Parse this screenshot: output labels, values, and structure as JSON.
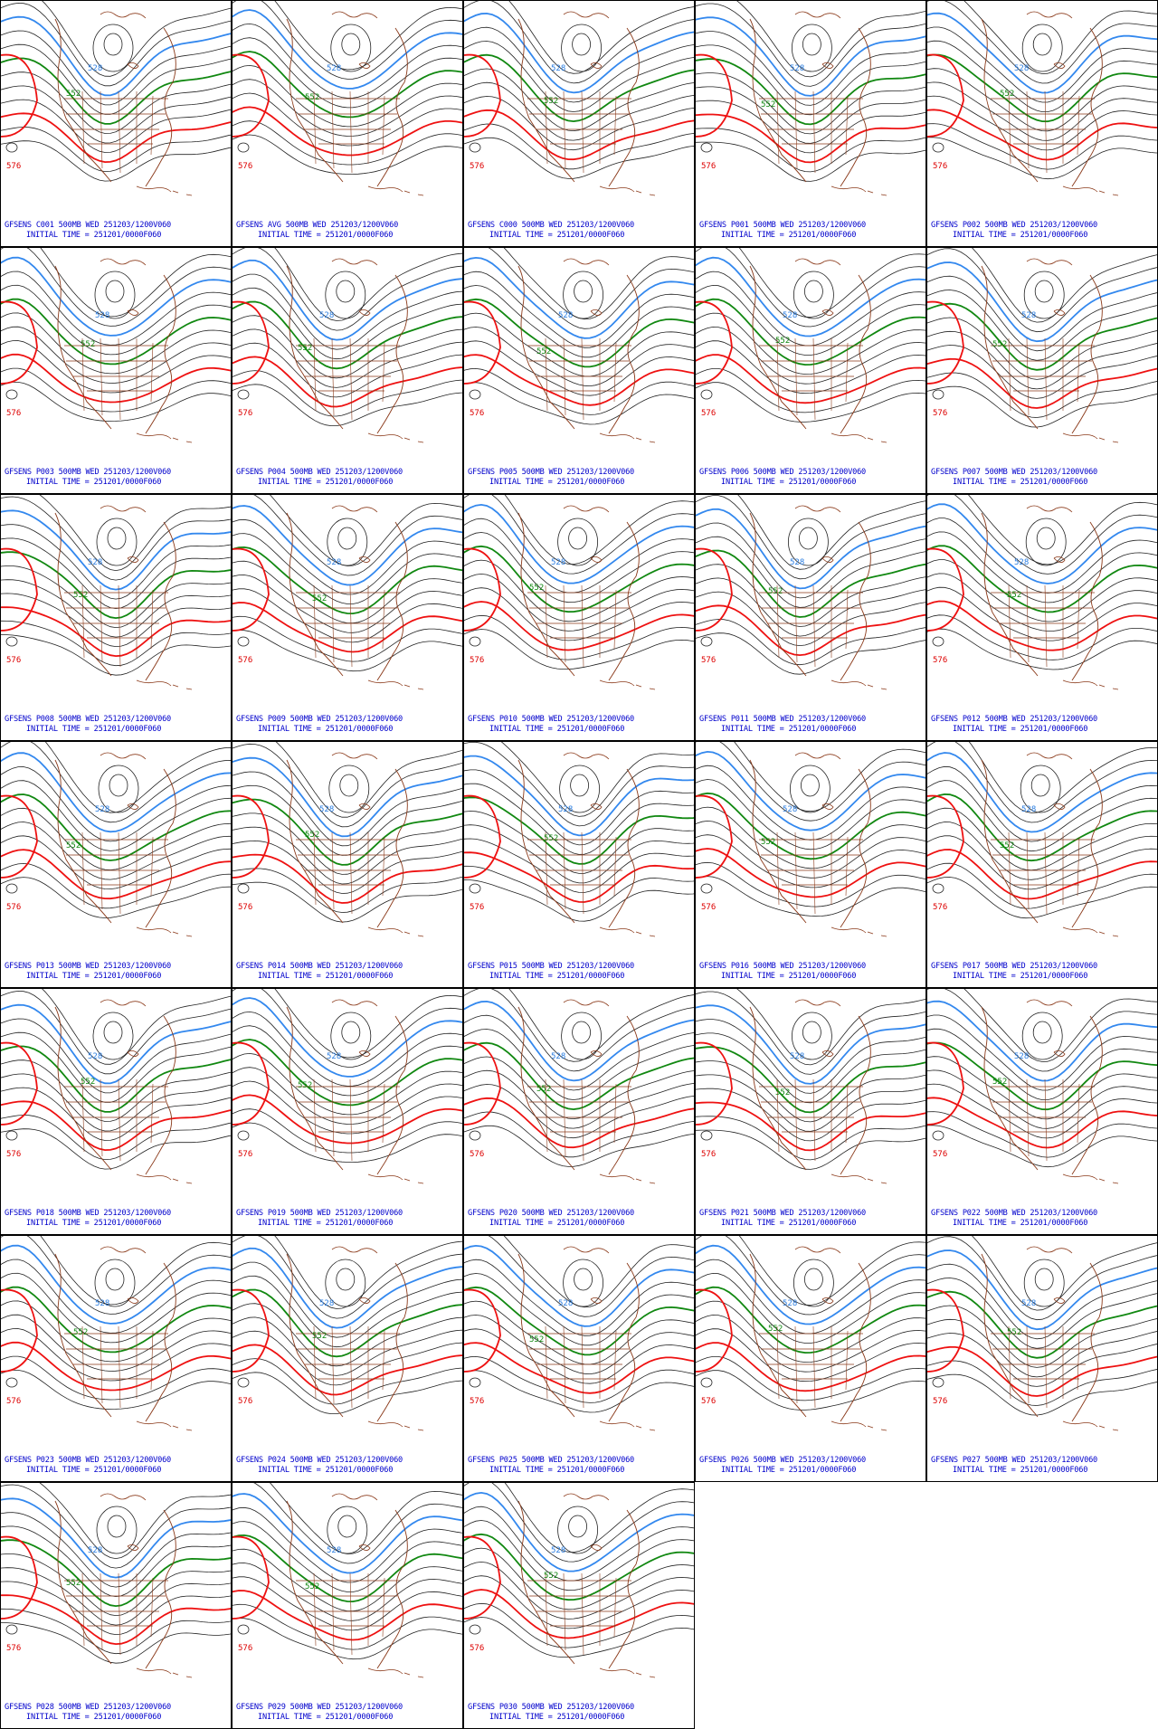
{
  "initial_time": "INITIAL TIME = 251201/0000F060",
  "contour_labels": {
    "green": "552",
    "red": "576",
    "blue": "528"
  },
  "colors": {
    "red_contour": "#ee1111",
    "green_contour": "#118811",
    "blue_contour": "#3388ee",
    "black_contour": "#222222",
    "coastlines": "#8b3a1a",
    "label_text": "#0000cc"
  },
  "panels": [
    {
      "title": "GFSENS C001 500MB WED 251203/1200V060"
    },
    {
      "title": "GFSENS AVG 500MB WED 251203/1200V060"
    },
    {
      "title": "GFSENS C000 500MB WED 251203/1200V060"
    },
    {
      "title": "GFSENS P001 500MB WED 251203/1200V060"
    },
    {
      "title": "GFSENS P002 500MB WED 251203/1200V060"
    },
    {
      "title": "GFSENS P003 500MB WED 251203/1200V060"
    },
    {
      "title": "GFSENS P004 500MB WED 251203/1200V060"
    },
    {
      "title": "GFSENS P005 500MB WED 251203/1200V060"
    },
    {
      "title": "GFSENS P006 500MB WED 251203/1200V060"
    },
    {
      "title": "GFSENS P007 500MB WED 251203/1200V060"
    },
    {
      "title": "GFSENS P008 500MB WED 251203/1200V060"
    },
    {
      "title": "GFSENS P009 500MB WED 251203/1200V060"
    },
    {
      "title": "GFSENS P010 500MB WED 251203/1200V060"
    },
    {
      "title": "GFSENS P011 500MB WED 251203/1200V060"
    },
    {
      "title": "GFSENS P012 500MB WED 251203/1200V060"
    },
    {
      "title": "GFSENS P013 500MB WED 251203/1200V060"
    },
    {
      "title": "GFSENS P014 500MB WED 251203/1200V060"
    },
    {
      "title": "GFSENS P015 500MB WED 251203/1200V060"
    },
    {
      "title": "GFSENS P016 500MB WED 251203/1200V060"
    },
    {
      "title": "GFSENS P017 500MB WED 251203/1200V060"
    },
    {
      "title": "GFSENS P018 500MB WED 251203/1200V060"
    },
    {
      "title": "GFSENS P019 500MB WED 251203/1200V060"
    },
    {
      "title": "GFSENS P020 500MB WED 251203/1200V060"
    },
    {
      "title": "GFSENS P021 500MB WED 251203/1200V060"
    },
    {
      "title": "GFSENS P022 500MB WED 251203/1200V060"
    },
    {
      "title": "GFSENS P023 500MB WED 251203/1200V060"
    },
    {
      "title": "GFSENS P024 500MB WED 251203/1200V060"
    },
    {
      "title": "GFSENS P025 500MB WED 251203/1200V060"
    },
    {
      "title": "GFSENS P026 500MB WED 251203/1200V060"
    },
    {
      "title": "GFSENS P027 500MB WED 251203/1200V060"
    },
    {
      "title": "GFSENS P028 500MB WED 251203/1200V060"
    },
    {
      "title": "GFSENS P029 500MB WED 251203/1200V060"
    },
    {
      "title": "GFSENS P030 500MB WED 251203/1200V060"
    }
  ]
}
